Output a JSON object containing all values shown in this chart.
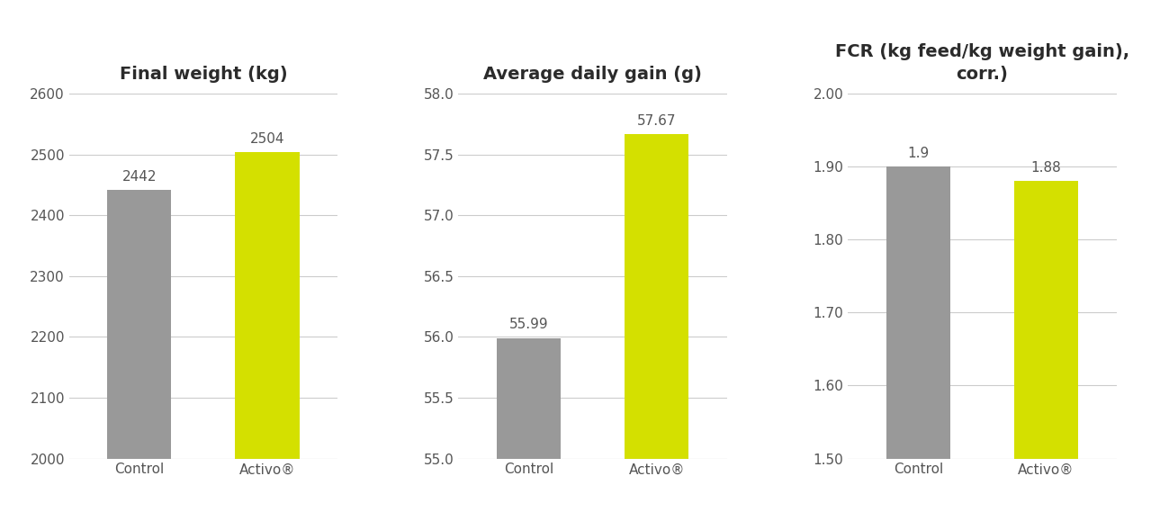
{
  "charts": [
    {
      "title": "Final weight (kg)",
      "categories": [
        "Control",
        "Activo®"
      ],
      "values": [
        2442,
        2504
      ],
      "ylim": [
        2000,
        2600
      ],
      "yticks": [
        2000,
        2100,
        2200,
        2300,
        2400,
        2500,
        2600
      ],
      "ytick_labels": [
        "2000",
        "2100",
        "2200",
        "2300",
        "2400",
        "2500",
        "2600"
      ],
      "bar_labels": [
        "2442",
        "2504"
      ]
    },
    {
      "title": "Average daily gain (g)",
      "categories": [
        "Control",
        "Activo®"
      ],
      "values": [
        55.99,
        57.67
      ],
      "ylim": [
        55.0,
        58.0
      ],
      "yticks": [
        55.0,
        55.5,
        56.0,
        56.5,
        57.0,
        57.5,
        58.0
      ],
      "ytick_labels": [
        "55.0",
        "55.5",
        "56.0",
        "56.5",
        "57.0",
        "57.5",
        "58.0"
      ],
      "bar_labels": [
        "55.99",
        "57.67"
      ]
    },
    {
      "title": "FCR (kg feed/kg weight gain),\ncorr.)",
      "categories": [
        "Control",
        "Activo®"
      ],
      "values": [
        1.9,
        1.88
      ],
      "ylim": [
        1.5,
        2.0
      ],
      "yticks": [
        1.5,
        1.6,
        1.7,
        1.8,
        1.9,
        2.0
      ],
      "ytick_labels": [
        "1.50",
        "1.60",
        "1.70",
        "1.80",
        "1.90",
        "2.00"
      ],
      "bar_labels": [
        "1.9",
        "1.88"
      ]
    }
  ],
  "bar_colors": [
    "#999999",
    "#d4e000"
  ],
  "background_color": "#ffffff",
  "title_fontsize": 14,
  "tick_fontsize": 11,
  "bar_label_fontsize": 11,
  "grid_color": "#cccccc",
  "title_color": "#2b2b2b",
  "tick_color": "#555555"
}
